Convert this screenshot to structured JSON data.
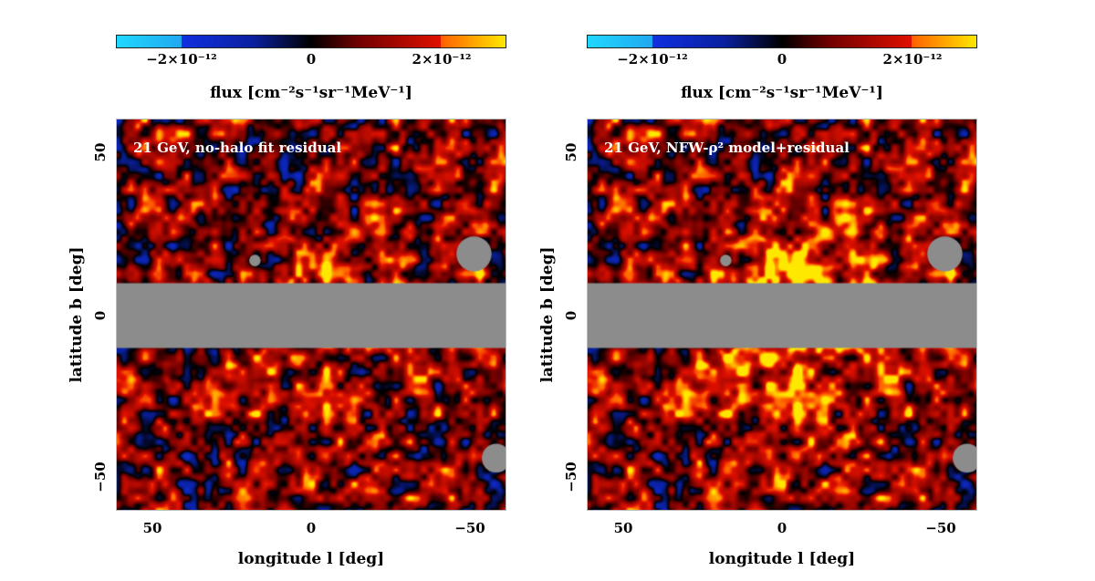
{
  "chart_data": [
    {
      "type": "heatmap",
      "annotation": "21 GeV, no-halo fit residual",
      "xlabel": "longitude l [deg]",
      "ylabel": "latitude b [deg]",
      "xlim": [
        61.5,
        -61.5
      ],
      "ylim": [
        -60.5,
        60.5
      ],
      "xticks": [
        "50",
        "0",
        "−50"
      ],
      "yticks": [
        "50",
        "0",
        "−50"
      ],
      "mask_band_b": [
        -10,
        10
      ],
      "mask_color": "#8c8c8c",
      "signal_strength": 0.6
    },
    {
      "type": "heatmap",
      "annotation": "21 GeV, NFW-ρ² model+residual",
      "xlabel": "longitude l [deg]",
      "ylabel": "latitude b [deg]",
      "xlim": [
        61.5,
        -61.5
      ],
      "ylim": [
        -60.5,
        60.5
      ],
      "xticks": [
        "50",
        "0",
        "−50"
      ],
      "yticks": [
        "50",
        "0",
        "−50"
      ],
      "mask_band_b": [
        -10,
        10
      ],
      "mask_color": "#8c8c8c",
      "signal_strength": 1.6
    }
  ],
  "colorbar": {
    "label": "flux [cm⁻²s⁻¹sr⁻¹MeV⁻¹]",
    "ticks": [
      "−2×10⁻¹²",
      "0",
      "2×10⁻¹²"
    ],
    "range": [
      -3e-12,
      3e-12
    ],
    "colors": [
      "#20d8ff",
      "#1030e0",
      "#000000",
      "#e01000",
      "#ffe800"
    ]
  }
}
